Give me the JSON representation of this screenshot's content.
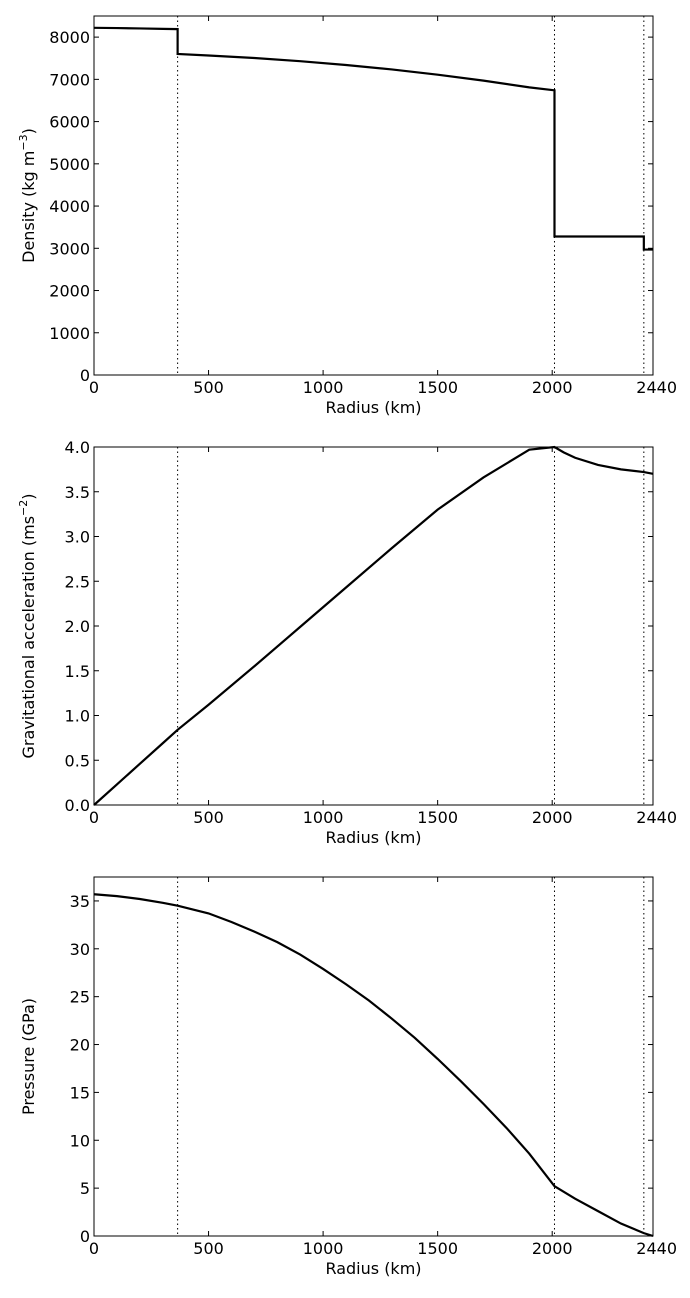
{
  "chart_data": [
    {
      "type": "line",
      "xlabel": "Radius (km)",
      "ylabel": "Density (kg m",
      "ylabel_sup": "−3",
      "ylabel_end": ")",
      "xlim": [
        0,
        2440
      ],
      "ylim": [
        0,
        8500
      ],
      "xticks": [
        0,
        500,
        1000,
        1500,
        2000,
        2440
      ],
      "xtick_labels": [
        "0",
        "500",
        "1000",
        "1500",
        "2000",
        "2440"
      ],
      "yticks": [
        0,
        1000,
        2000,
        3000,
        4000,
        5000,
        6000,
        7000,
        8000
      ],
      "ytick_labels": [
        "0",
        "1000",
        "2000",
        "3000",
        "4000",
        "5000",
        "6000",
        "7000",
        "8000"
      ],
      "grid": false,
      "boundaries": [
        365,
        2010,
        2400
      ],
      "series": [
        {
          "x": [
            0,
            100,
            200,
            300,
            365,
            365,
            500,
            700,
            900,
            1100,
            1300,
            1500,
            1700,
            1900,
            2010,
            2010,
            2400,
            2400,
            2440
          ],
          "y": [
            8220,
            8215,
            8205,
            8195,
            8190,
            7600,
            7565,
            7505,
            7430,
            7340,
            7235,
            7110,
            6970,
            6810,
            6740,
            3280,
            3280,
            2970,
            2970
          ]
        }
      ]
    },
    {
      "type": "line",
      "xlabel": "Radius (km)",
      "ylabel": "Gravitational acceleration (ms",
      "ylabel_sup": "−2",
      "ylabel_end": ")",
      "xlim": [
        0,
        2440
      ],
      "ylim": [
        0,
        4.0
      ],
      "xticks": [
        0,
        500,
        1000,
        1500,
        2000,
        2440
      ],
      "xtick_labels": [
        "0",
        "500",
        "1000",
        "1500",
        "2000",
        "2440"
      ],
      "yticks": [
        0.0,
        0.5,
        1.0,
        1.5,
        2.0,
        2.5,
        3.0,
        3.5,
        4.0
      ],
      "ytick_labels": [
        "0.0",
        "0.5",
        "1.0",
        "1.5",
        "2.0",
        "2.5",
        "3.0",
        "3.5",
        "4.0"
      ],
      "grid": false,
      "boundaries": [
        365,
        2010,
        2400
      ],
      "series": [
        {
          "x": [
            0,
            100,
            200,
            300,
            365,
            500,
            700,
            900,
            1100,
            1300,
            1500,
            1700,
            1900,
            2010,
            2050,
            2100,
            2200,
            2300,
            2400,
            2440
          ],
          "y": [
            0.0,
            0.23,
            0.46,
            0.69,
            0.84,
            1.12,
            1.55,
            1.99,
            2.43,
            2.87,
            3.3,
            3.66,
            3.97,
            4.0,
            3.94,
            3.88,
            3.8,
            3.75,
            3.72,
            3.7
          ]
        }
      ]
    },
    {
      "type": "line",
      "xlabel": "Radius (km)",
      "ylabel": "Pressure (GPa)",
      "ylabel_sup": "",
      "ylabel_end": "",
      "xlim": [
        0,
        2440
      ],
      "ylim": [
        0,
        37.5
      ],
      "xticks": [
        0,
        500,
        1000,
        1500,
        2000,
        2440
      ],
      "xtick_labels": [
        "0",
        "500",
        "1000",
        "1500",
        "2000",
        "2440"
      ],
      "yticks": [
        0,
        5,
        10,
        15,
        20,
        25,
        30,
        35
      ],
      "ytick_labels": [
        "0",
        "5",
        "10",
        "15",
        "20",
        "25",
        "30",
        "35"
      ],
      "grid": false,
      "boundaries": [
        365,
        2010,
        2400
      ],
      "series": [
        {
          "x": [
            0,
            100,
            200,
            300,
            365,
            500,
            600,
            700,
            800,
            900,
            1000,
            1100,
            1200,
            1300,
            1400,
            1500,
            1600,
            1700,
            1800,
            1900,
            2010,
            2100,
            2200,
            2300,
            2400,
            2440
          ],
          "y": [
            35.7,
            35.5,
            35.2,
            34.8,
            34.5,
            33.7,
            32.8,
            31.8,
            30.7,
            29.4,
            27.9,
            26.3,
            24.6,
            22.7,
            20.7,
            18.5,
            16.2,
            13.8,
            11.3,
            8.6,
            5.2,
            3.9,
            2.6,
            1.3,
            0.3,
            0.0
          ]
        }
      ]
    }
  ]
}
